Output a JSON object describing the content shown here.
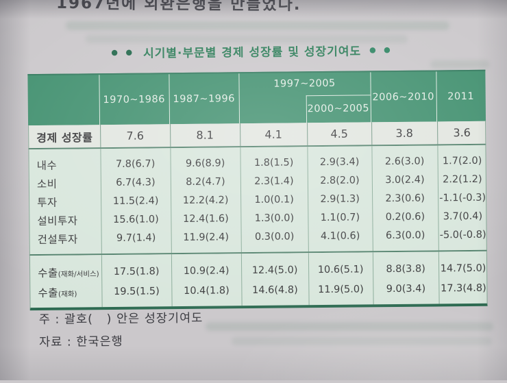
{
  "page_text": {
    "top_clipped_line": "1967년에 외환은행을 만들었다.",
    "note_line": "주 : 괄호(   ) 안은 성장기여도",
    "source_line": "자료 : 한국은행"
  },
  "title": {
    "text": "시기별·부문별 경제 성장률 및 성장기여도",
    "left_dots": "● ●",
    "right_dots": "● ●"
  },
  "colors": {
    "header_green": "#41906f",
    "body_mint": "#d8e6dc",
    "growth_row_bg": "#e2e6e0",
    "title_green": "#2b7c57",
    "bottom_border": "#2e6b52",
    "page_bg": "#cbc8cb"
  },
  "chart_data": {
    "type": "table",
    "title": "시기별·부문별 경제 성장률 및 성장기여도",
    "note": "주 : 괄호( ) 안은 성장기여도",
    "source": "자료 : 한국은행",
    "column_headers": {
      "c1970": "1970~1986",
      "c1987": "1987~1996",
      "group_1997": "1997~2005",
      "sub_2000": "2000~2005",
      "c2006": "2006~2010",
      "c2011": "2011"
    },
    "growth_rows": [
      {
        "label": "경제 성장률",
        "label_small": "",
        "values": [
          "7.6",
          "8.1",
          "4.1",
          "4.5",
          "3.8",
          "3.6"
        ]
      }
    ],
    "domestic_rows": [
      {
        "label": "내수",
        "label_small": "",
        "values": [
          "7.8(6.7)",
          "9.6(8.9)",
          "1.8(1.5)",
          "2.9(3.4)",
          "2.6(3.0)",
          "1.7(2.0)"
        ]
      },
      {
        "label": "소비",
        "label_small": "",
        "values": [
          "6.7(4.3)",
          "8.2(4.7)",
          "2.3(1.4)",
          "2.8(2.0)",
          "3.0(2.4)",
          "2.2(1.2)"
        ]
      },
      {
        "label": "투자",
        "label_small": "",
        "values": [
          "11.5(2.4)",
          "12.2(4.2)",
          "1.0(0.1)",
          "2.9(1.3)",
          "2.3(0.6)",
          "-1.1(-0.3)"
        ]
      },
      {
        "label": "설비투자",
        "label_small": "",
        "values": [
          "15.6(1.0)",
          "12.4(1.6)",
          "1.3(0.0)",
          "1.1(0.7)",
          "0.2(0.6)",
          "3.7(0.4)"
        ]
      },
      {
        "label": "건설투자",
        "label_small": "",
        "values": [
          "9.7(1.4)",
          "11.9(2.4)",
          "0.3(0.0)",
          "4.1(0.6)",
          "6.3(0.0)",
          "-5.0(-0.8)"
        ]
      }
    ],
    "export_rows": [
      {
        "label": "수출",
        "label_small": "(재화/서비스)",
        "values": [
          "17.5(1.8)",
          "10.9(2.4)",
          "12.4(5.0)",
          "10.6(5.1)",
          "8.8(3.8)",
          "14.7(5.0)"
        ]
      },
      {
        "label": "수출",
        "label_small": "(재화)",
        "values": [
          "19.5(1.5)",
          "10.4(1.8)",
          "14.6(4.8)",
          "11.9(5.0)",
          "9.0(3.4)",
          "17.3(4.8)"
        ]
      }
    ]
  }
}
